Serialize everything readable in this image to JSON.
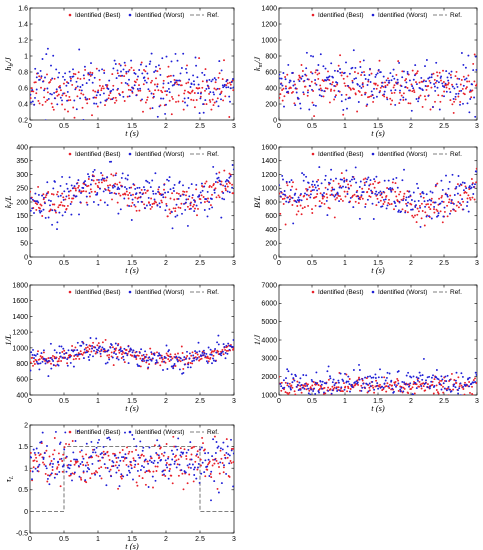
{
  "colors": {
    "best": "#e8202a",
    "worst": "#1f1fd6",
    "ref": "#555555"
  },
  "chart_data": [
    {
      "type": "scatter",
      "ylabel": "h_b/J",
      "xlabel": "t (s)",
      "xlim": [
        0,
        3
      ],
      "ylim": [
        0.2,
        1.6
      ],
      "xticks": [
        "0",
        "0.5",
        "1",
        "1.5",
        "2",
        "2.5",
        "3"
      ],
      "yticks": [
        "0.2",
        "0.4",
        "0.6",
        "0.8",
        "1",
        "1.2",
        "1.4",
        "1.6"
      ],
      "legend_position": "top-right",
      "series": [
        {
          "name": "Identified (Best)",
          "trend": [
            [
              0,
              0.62
            ],
            [
              0.5,
              0.56
            ],
            [
              1,
              0.58
            ],
            [
              1.5,
              0.62
            ],
            [
              2,
              0.6
            ],
            [
              2.5,
              0.57
            ],
            [
              3,
              0.58
            ]
          ],
          "spread": 0.14
        },
        {
          "name": "Identified (Worst)",
          "trend": [
            [
              0,
              0.66
            ],
            [
              0.5,
              0.6
            ],
            [
              1,
              0.62
            ],
            [
              1.5,
              0.68
            ],
            [
              2,
              0.64
            ],
            [
              2.5,
              0.6
            ],
            [
              3,
              0.62
            ]
          ],
          "spread": 0.17
        },
        {
          "name": "Ref.",
          "points": []
        }
      ]
    },
    {
      "type": "scatter",
      "ylabel": "k_m/J",
      "xlabel": "t (s)",
      "xlim": [
        0,
        3
      ],
      "ylim": [
        0,
        1400
      ],
      "xticks": [
        "0",
        "0.5",
        "1",
        "1.5",
        "2",
        "2.5",
        "3"
      ],
      "yticks": [
        "0",
        "200",
        "400",
        "600",
        "800",
        "1000",
        "1200",
        "1400"
      ],
      "legend_position": "top-right",
      "series": [
        {
          "name": "Identified (Best)",
          "trend": [
            [
              0,
              400
            ],
            [
              0.5,
              420
            ],
            [
              1,
              410
            ],
            [
              1.5,
              430
            ],
            [
              2,
              400
            ],
            [
              2.5,
              400
            ],
            [
              3,
              410
            ]
          ],
          "spread": 130
        },
        {
          "name": "Identified (Worst)",
          "trend": [
            [
              0,
              440
            ],
            [
              0.5,
              470
            ],
            [
              1,
              460
            ],
            [
              1.5,
              480
            ],
            [
              2,
              450
            ],
            [
              2.5,
              450
            ],
            [
              3,
              460
            ]
          ],
          "spread": 160
        },
        {
          "name": "Ref.",
          "points": []
        }
      ]
    },
    {
      "type": "scatter",
      "ylabel": "k_t/L",
      "xlabel": "t (s)",
      "xlim": [
        0,
        3
      ],
      "ylim": [
        0,
        400
      ],
      "xticks": [
        "0",
        "0.5",
        "1",
        "1.5",
        "2",
        "2.5",
        "3"
      ],
      "yticks": [
        "0",
        "50",
        "100",
        "150",
        "200",
        "250",
        "300",
        "350",
        "400"
      ],
      "legend_position": "top-right",
      "series": [
        {
          "name": "Identified (Best)",
          "trend": [
            [
              0,
              205
            ],
            [
              0.5,
              198
            ],
            [
              0.8,
              230
            ],
            [
              1,
              260
            ],
            [
              1.3,
              240
            ],
            [
              1.6,
              210
            ],
            [
              2,
              205
            ],
            [
              2.4,
              195
            ],
            [
              2.7,
              235
            ],
            [
              3,
              265
            ]
          ],
          "spread": 28
        },
        {
          "name": "Identified (Worst)",
          "trend": [
            [
              0,
              210
            ],
            [
              0.5,
              205
            ],
            [
              0.8,
              240
            ],
            [
              1,
              275
            ],
            [
              1.3,
              250
            ],
            [
              1.6,
              220
            ],
            [
              2,
              212
            ],
            [
              2.4,
              200
            ],
            [
              2.7,
              245
            ],
            [
              3,
              275
            ]
          ],
          "spread": 40
        },
        {
          "name": "Ref.",
          "points": []
        }
      ]
    },
    {
      "type": "scatter",
      "ylabel": "B/L",
      "xlabel": "t (s)",
      "xlim": [
        0,
        3
      ],
      "ylim": [
        0,
        1600
      ],
      "xticks": [
        "0",
        "0.5",
        "1",
        "1.5",
        "2",
        "2.5",
        "3"
      ],
      "yticks": [
        "0",
        "200",
        "400",
        "600",
        "800",
        "1000",
        "1200",
        "1400",
        "1600"
      ],
      "legend_position": "top-right",
      "series": [
        {
          "name": "Identified (Best)",
          "trend": [
            [
              0,
              870
            ],
            [
              0.5,
              880
            ],
            [
              1,
              950
            ],
            [
              1.5,
              900
            ],
            [
              2,
              780
            ],
            [
              2.3,
              720
            ],
            [
              2.6,
              830
            ],
            [
              3,
              960
            ]
          ],
          "spread": 120
        },
        {
          "name": "Identified (Worst)",
          "trend": [
            [
              0,
              900
            ],
            [
              0.5,
              920
            ],
            [
              1,
              990
            ],
            [
              1.5,
              940
            ],
            [
              2,
              820
            ],
            [
              2.3,
              760
            ],
            [
              2.6,
              880
            ],
            [
              3,
              1000
            ]
          ],
          "spread": 170
        },
        {
          "name": "Ref.",
          "points": []
        }
      ]
    },
    {
      "type": "scatter",
      "ylabel": "1/L",
      "xlabel": "t (s)",
      "xlim": [
        0,
        3
      ],
      "ylim": [
        400,
        1800
      ],
      "xticks": [
        "0",
        "0.5",
        "1",
        "1.5",
        "2",
        "2.5",
        "3"
      ],
      "yticks": [
        "400",
        "600",
        "800",
        "1000",
        "1200",
        "1400",
        "1600",
        "1800"
      ],
      "legend_position": "top-right",
      "series": [
        {
          "name": "Identified (Best)",
          "trend": [
            [
              0,
              830
            ],
            [
              0.5,
              880
            ],
            [
              1,
              980
            ],
            [
              1.4,
              920
            ],
            [
              1.8,
              840
            ],
            [
              2.2,
              840
            ],
            [
              2.6,
              900
            ],
            [
              3,
              990
            ]
          ],
          "spread": 55
        },
        {
          "name": "Identified (Worst)",
          "trend": [
            [
              0,
              840
            ],
            [
              0.5,
              900
            ],
            [
              1,
              1000
            ],
            [
              1.4,
              940
            ],
            [
              1.8,
              860
            ],
            [
              2.2,
              850
            ],
            [
              2.6,
              920
            ],
            [
              3,
              1010
            ]
          ],
          "spread": 70
        },
        {
          "name": "Ref.",
          "points": []
        }
      ]
    },
    {
      "type": "scatter",
      "ylabel": "1/J",
      "xlabel": "t (s)",
      "xlim": [
        0,
        3
      ],
      "ylim": [
        1000,
        7000
      ],
      "xticks": [
        "0",
        "0.5",
        "1",
        "1.5",
        "2",
        "2.5",
        "3"
      ],
      "yticks": [
        "1000",
        "2000",
        "3000",
        "4000",
        "5000",
        "6000",
        "7000"
      ],
      "legend_position": "top-right",
      "series": [
        {
          "name": "Identified (Best)",
          "trend": [
            [
              0,
              1450
            ],
            [
              1,
              1500
            ],
            [
              2,
              1480
            ],
            [
              3,
              1460
            ]
          ],
          "spread": 260
        },
        {
          "name": "Identified (Worst)",
          "trend": [
            [
              0,
              1600
            ],
            [
              1,
              1650
            ],
            [
              2,
              1620
            ],
            [
              3,
              1600
            ]
          ],
          "spread": 380
        },
        {
          "name": "Ref.",
          "points": []
        }
      ]
    },
    {
      "type": "scatter",
      "ylabel": "τ_L",
      "xlabel": "t (s)",
      "xlim": [
        0,
        3
      ],
      "ylim": [
        -0.5,
        2
      ],
      "xticks": [
        "0",
        "0.5",
        "1",
        "1.5",
        "2",
        "2.5",
        "3"
      ],
      "yticks": [
        "-0.5",
        "0",
        "0.5",
        "1",
        "1.5",
        "2"
      ],
      "legend_position": "top-right",
      "series": [
        {
          "name": "Identified (Best)",
          "trend": [
            [
              0,
              1.15
            ],
            [
              1,
              1.1
            ],
            [
              2,
              1.1
            ],
            [
              3,
              1.15
            ]
          ],
          "spread": 0.25
        },
        {
          "name": "Identified (Worst)",
          "trend": [
            [
              0,
              1.2
            ],
            [
              1,
              1.15
            ],
            [
              2,
              1.15
            ],
            [
              3,
              1.2
            ]
          ],
          "spread": 0.3
        },
        {
          "name": "Ref.",
          "points": [
            [
              0,
              0
            ],
            [
              0.5,
              0
            ],
            [
              0.5,
              1.5
            ],
            [
              2.5,
              1.5
            ],
            [
              2.5,
              0
            ],
            [
              3,
              0
            ]
          ]
        }
      ]
    }
  ]
}
